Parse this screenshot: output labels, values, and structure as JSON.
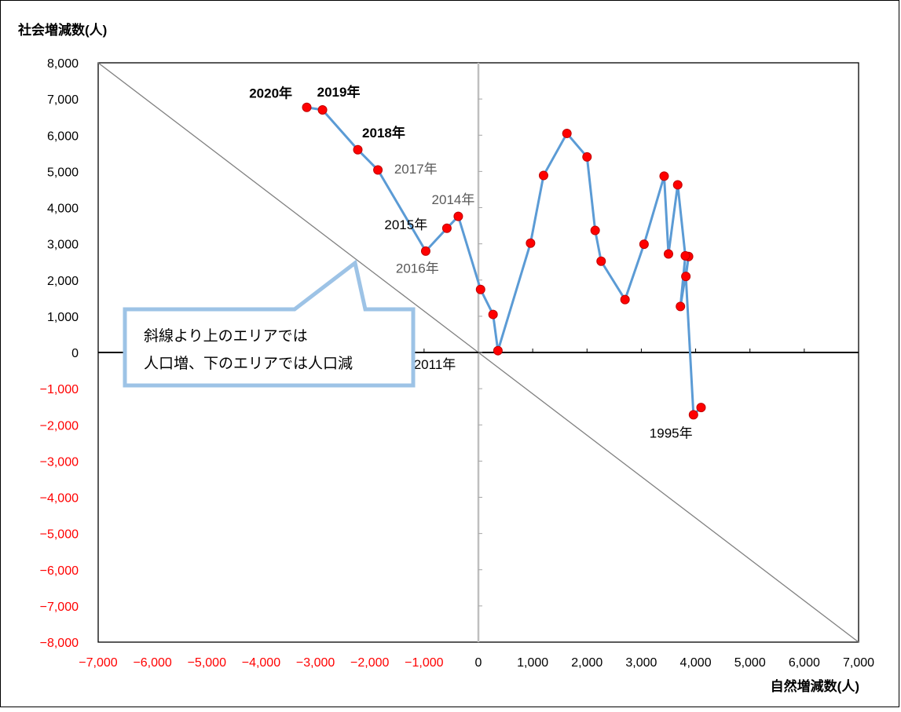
{
  "chart_data": {
    "type": "scatter",
    "ylabel": "社会増減数(人)",
    "xlabel": "自然増減数(人)",
    "xlim": [
      -7000,
      7000
    ],
    "ylim": [
      -8000,
      8000
    ],
    "xticks": [
      "−7,000",
      "−6,000",
      "−5,000",
      "−4,000",
      "−3,000",
      "−2,000",
      "−1,000",
      "0",
      "1,000",
      "2,000",
      "3,000",
      "4,000",
      "5,000",
      "6,000",
      "7,000"
    ],
    "xtick_values": [
      -7000,
      -6000,
      -5000,
      -4000,
      -3000,
      -2000,
      -1000,
      0,
      1000,
      2000,
      3000,
      4000,
      5000,
      6000,
      7000
    ],
    "yticks": [
      "8,000",
      "7,000",
      "6,000",
      "5,000",
      "4,000",
      "3,000",
      "2,000",
      "1,000",
      "0",
      "−1,000",
      "−2,000",
      "−3,000",
      "−4,000",
      "−5,000",
      "−6,000",
      "−7,000",
      "−8,000"
    ],
    "ytick_values": [
      8000,
      7000,
      6000,
      5000,
      4000,
      3000,
      2000,
      1000,
      0,
      -1000,
      -2000,
      -3000,
      -4000,
      -5000,
      -6000,
      -7000,
      -8000
    ],
    "series": [
      {
        "x": [
          4100,
          3960,
          3820,
          3870,
          3720,
          3810,
          3670,
          3500,
          3420,
          3050,
          2700,
          2260,
          2150,
          2000,
          1630,
          1200,
          960,
          360,
          270,
          40,
          -370,
          -580,
          -970,
          -1850,
          -2220,
          -2870,
          -3160
        ],
        "y": [
          -1520,
          -1720,
          2100,
          2650,
          1270,
          2670,
          4630,
          2720,
          4870,
          2990,
          1460,
          2520,
          3370,
          5400,
          6050,
          4890,
          3020,
          50,
          1050,
          1740,
          3760,
          3430,
          2800,
          5040,
          5600,
          6700,
          6770
        ]
      }
    ],
    "reference_line": {
      "from": [
        -7000,
        8000
      ],
      "to": [
        7000,
        -8000
      ]
    },
    "annotations": [
      {
        "text": "1995年",
        "x": 3150,
        "y": -2350,
        "color": "#000000",
        "bold": false
      },
      {
        "text": "2011年",
        "x": -1190,
        "y": -450,
        "color": "#000000",
        "bold": false
      },
      {
        "text": "2014年",
        "x": -860,
        "y": 4100,
        "color": "#595959",
        "bold": false
      },
      {
        "text": "2015年",
        "x": -1730,
        "y": 3400,
        "color": "#000000",
        "bold": false
      },
      {
        "text": "2016年",
        "x": -1520,
        "y": 2200,
        "color": "#595959",
        "bold": false
      },
      {
        "text": "2017年",
        "x": -1550,
        "y": 4940,
        "color": "#595959",
        "bold": false
      },
      {
        "text": "2018年",
        "x": -2140,
        "y": 5940,
        "color": "#000000",
        "bold": true
      },
      {
        "text": "2019年",
        "x": -2970,
        "y": 7070,
        "color": "#000000",
        "bold": true
      },
      {
        "text": "2020年",
        "x": -4220,
        "y": 7030,
        "color": "#000000",
        "bold": true
      }
    ],
    "callout": {
      "lines": [
        "斜線より上のエリアでは",
        "人口増、下のエリアでは人口減"
      ]
    },
    "colors": {
      "line": "#5b9bd5",
      "marker_fill": "#ff0000",
      "marker_edge": "#c00000",
      "negative_tick": "#ff0000",
      "diagonal": "#808080",
      "y_axis": "#bfbfbf",
      "callout_border": "#9dc3e6"
    },
    "grid": false
  }
}
